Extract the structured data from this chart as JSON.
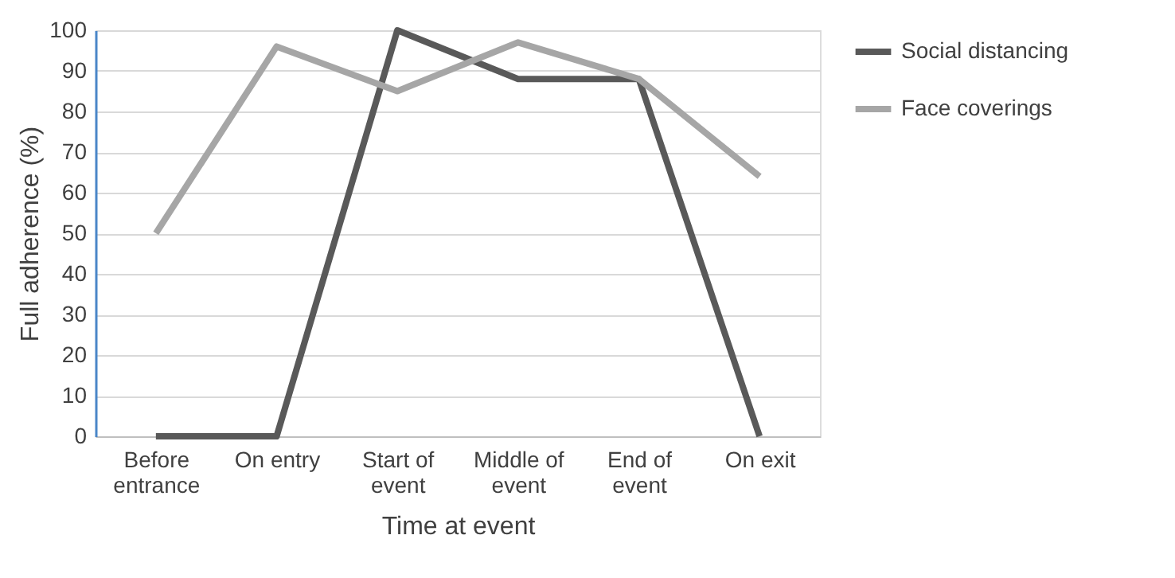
{
  "chart_data": {
    "type": "line",
    "xlabel": "Time at event",
    "ylabel": "Full adherence (%)",
    "categories": [
      "Before\nentrance",
      "On entry",
      "Start of\nevent",
      "Middle of\nevent",
      "End of\nevent",
      "On exit"
    ],
    "series": [
      {
        "name": "Social distancing",
        "color": "#595959",
        "values": [
          0,
          0,
          100,
          88,
          88,
          0
        ]
      },
      {
        "name": "Face coverings",
        "color": "#a6a6a6",
        "values": [
          50,
          96,
          85,
          97,
          88,
          64
        ]
      }
    ],
    "ylim": [
      0,
      100
    ],
    "yticks": [
      0,
      10,
      20,
      30,
      40,
      50,
      60,
      70,
      80,
      90,
      100
    ],
    "grid": "y",
    "legend": "right",
    "marker": "none",
    "line_style": "solid"
  }
}
